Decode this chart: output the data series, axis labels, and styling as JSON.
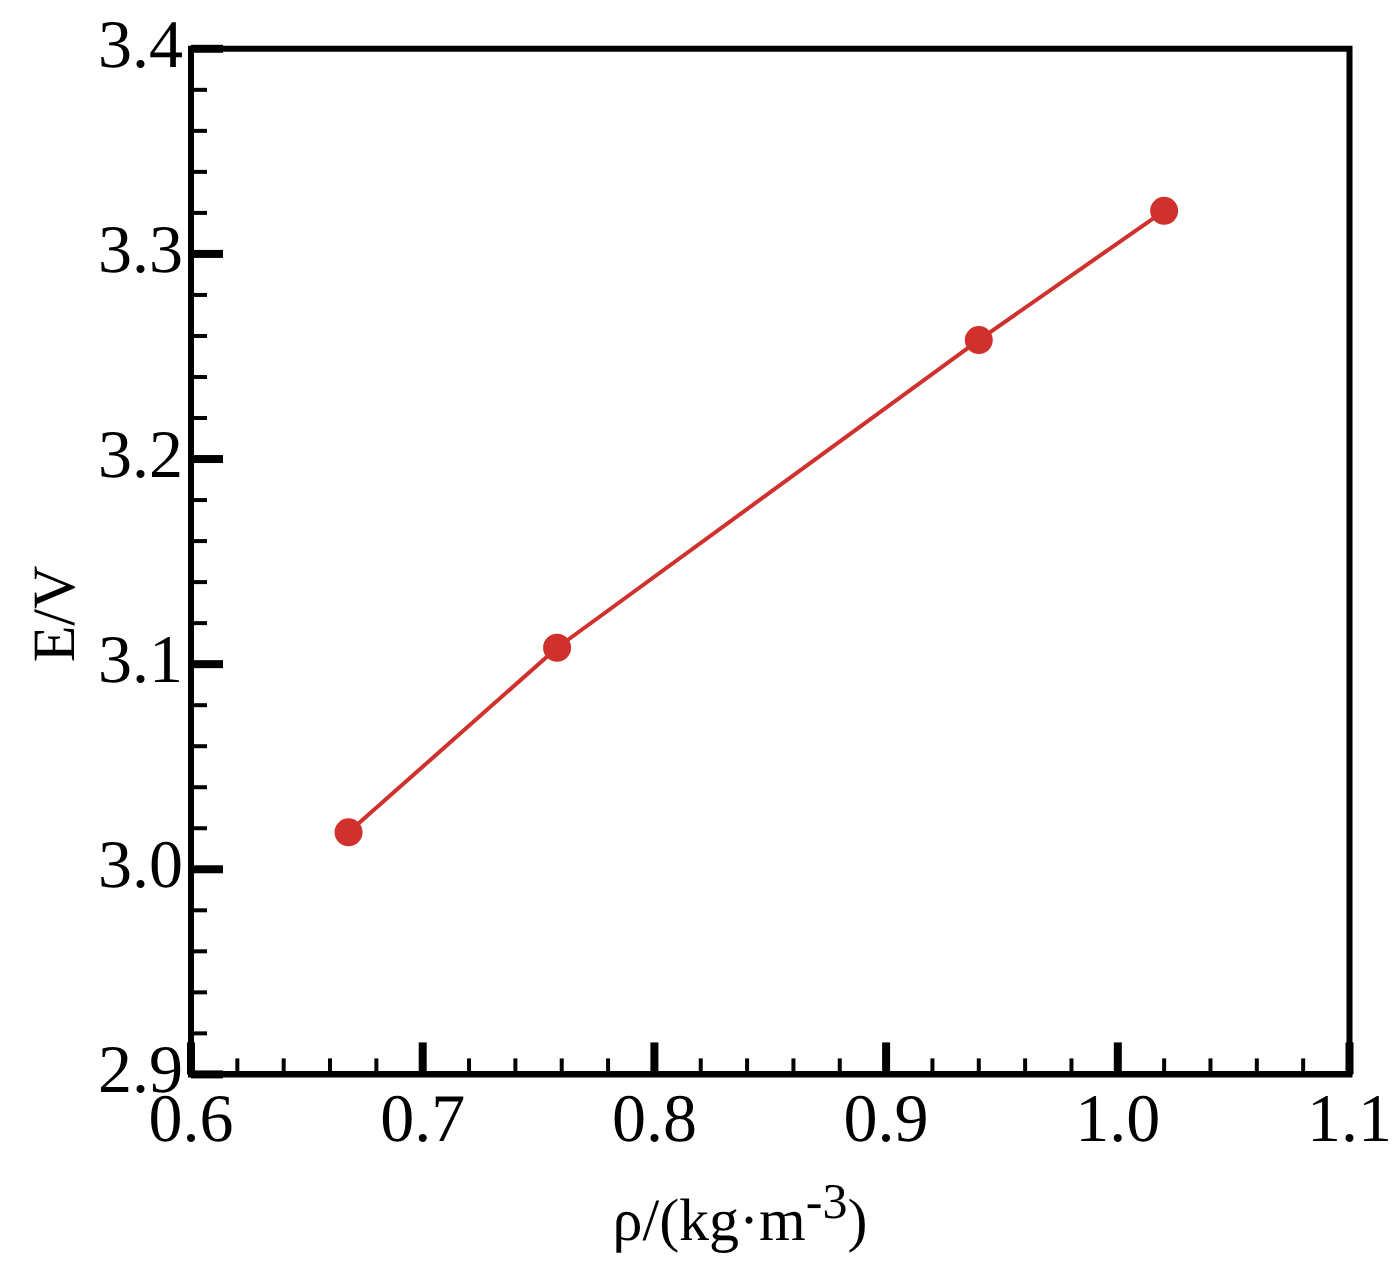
{
  "chart_data": {
    "type": "line",
    "xlabel": "ρ/(kg·m$^{-3}$)",
    "ylabel": "E/V",
    "x": [
      0.668,
      0.758,
      0.94,
      1.02
    ],
    "series": [
      {
        "color": "#d0312d",
        "values": [
          3.018,
          3.108,
          3.258,
          3.321
        ]
      }
    ],
    "xlim": [
      0.6,
      1.1
    ],
    "xticks": [
      0.6,
      {
        "value": 0.62,
        "label": null
      },
      {
        "value": 0.64,
        "label": null
      },
      {
        "value": 0.66,
        "label": null
      },
      {
        "value": 0.68,
        "label": null
      },
      0.7,
      {
        "value": 0.72,
        "label": null
      },
      {
        "value": 0.74,
        "label": null
      },
      {
        "value": 0.76,
        "label": null
      },
      {
        "value": 0.78,
        "label": null
      },
      0.8,
      {
        "value": 0.82,
        "label": null
      },
      {
        "value": 0.84,
        "label": null
      },
      {
        "value": 0.86,
        "label": null
      },
      {
        "value": 0.88,
        "label": null
      },
      0.9,
      {
        "value": 0.92,
        "label": null
      },
      {
        "value": 0.94,
        "label": null
      },
      {
        "value": 0.96,
        "label": null
      },
      {
        "value": 0.98,
        "label": null
      },
      {
        "value": 1.0,
        "label": "1.0"
      },
      {
        "value": 1.02,
        "label": null
      },
      {
        "value": 1.04,
        "label": null
      },
      {
        "value": 1.06,
        "label": null
      },
      {
        "value": 1.08,
        "label": null
      },
      1.1
    ],
    "ylim": [
      2.9,
      3.4
    ],
    "yticks": [
      {
        "value": 2.9,
        "label": "2.9"
      },
      {
        "value": 2.92,
        "label": null
      },
      {
        "value": 2.94,
        "label": null
      },
      {
        "value": 2.96,
        "label": null
      },
      {
        "value": 2.98,
        "label": null
      },
      {
        "value": 3.0,
        "label": "3.0"
      },
      {
        "value": 3.02,
        "label": null
      },
      {
        "value": 3.04,
        "label": null
      },
      {
        "value": 3.06,
        "label": null
      },
      {
        "value": 3.08,
        "label": null
      },
      3.1,
      {
        "value": 3.12,
        "label": null
      },
      {
        "value": 3.14,
        "label": null
      },
      {
        "value": 3.16,
        "label": null
      },
      {
        "value": 3.18,
        "label": null
      },
      3.2,
      {
        "value": 3.22,
        "label": null
      },
      {
        "value": 3.24,
        "label": null
      },
      {
        "value": 3.26,
        "label": null
      },
      {
        "value": 3.28,
        "label": null
      },
      3.3,
      {
        "value": 3.32,
        "label": null
      },
      {
        "value": 3.34,
        "label": null
      },
      {
        "value": 3.36,
        "label": null
      },
      {
        "value": 3.38,
        "label": null
      },
      3.4
    ],
    "grid": false,
    "legend": false,
    "marker": "circle",
    "line_style": "solid"
  }
}
